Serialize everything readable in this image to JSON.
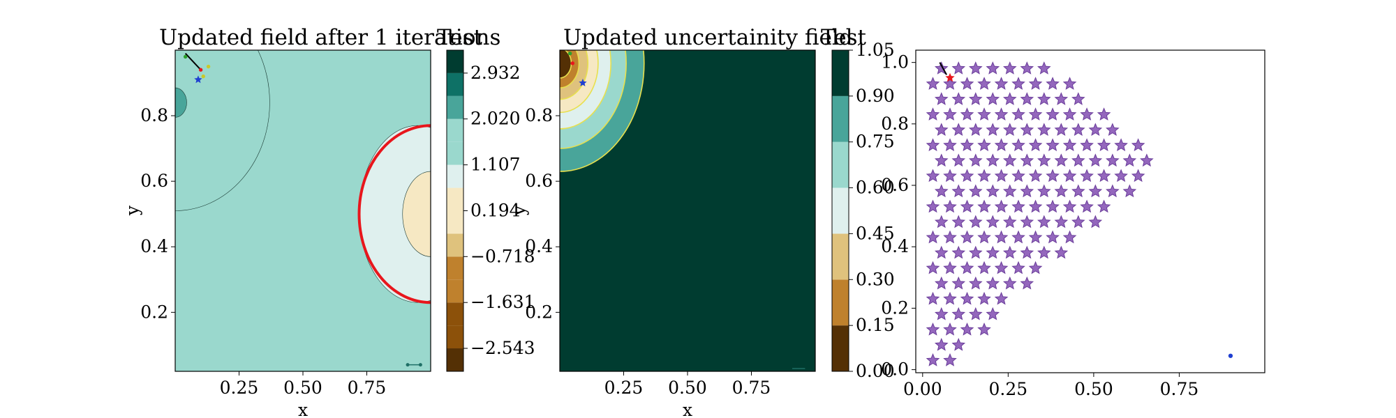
{
  "palette": {
    "brbg": [
      "#543005",
      "#8c510a",
      "#bf812d",
      "#dfc27d",
      "#f6e8c3",
      "#dff0ee",
      "#9ad8cd",
      "#49a59a",
      "#0e7166",
      "#003c30"
    ],
    "stars": "#9467bd",
    "star_edge": "#6a3d9a",
    "boundary_red": "#e8161c",
    "unc_contour": "#e8e04e"
  },
  "chart_data": [
    {
      "type": "contour",
      "title": "Updated field after 1 iterations",
      "xlabel": "x",
      "ylabel": "y",
      "xlim": [
        0.0,
        1.0
      ],
      "ylim": [
        0.02,
        1.0
      ],
      "xticks": [
        "0.25",
        "0.50",
        "0.75"
      ],
      "yticks": [
        "0.2",
        "0.4",
        "0.6",
        "0.8"
      ],
      "ytick_values": [
        0.2,
        0.4,
        0.6,
        0.8
      ],
      "xtick_values": [
        0.25,
        0.5,
        0.75
      ],
      "colorbar": {
        "label": "Test",
        "ticks": [
          "2.932",
          "2.020",
          "1.107",
          "0.194",
          "−0.718",
          "−1.631",
          "−2.543"
        ],
        "tick_values": [
          2.932,
          2.02,
          1.107,
          0.194,
          -0.718,
          -1.631,
          -2.543
        ],
        "levels": [
          -3.0,
          -2.543,
          -2.087,
          -1.631,
          -1.175,
          -0.718,
          -0.262,
          0.194,
          0.65,
          1.107,
          1.563,
          2.02,
          2.476,
          2.932,
          3.388
        ]
      },
      "regions": [
        {
          "shape": "ellipse",
          "center": [
            0.0,
            0.84
          ],
          "radii": [
            0.37,
            0.33
          ],
          "level_color": "#9ad8cd"
        },
        {
          "shape": "ellipse",
          "center": [
            0.0,
            0.84
          ],
          "radii": [
            0.045,
            0.045
          ],
          "level_color": "#49a59a"
        },
        {
          "shape": "ellipse",
          "center": [
            0.95,
            0.5
          ],
          "radii": [
            0.23,
            0.27
          ],
          "level_color": "#dff0ee"
        },
        {
          "shape": "ellipse",
          "center": [
            1.0,
            0.5
          ],
          "radii": [
            0.11,
            0.13
          ],
          "level_color": "#f6e8c3"
        }
      ],
      "boundary": {
        "center": [
          1.0,
          0.5
        ],
        "radii": [
          0.28,
          0.27
        ]
      },
      "markers": [
        {
          "x": 0.1,
          "y": 0.94,
          "kind": "dot",
          "color": "#e8161c"
        },
        {
          "x": 0.09,
          "y": 0.91,
          "kind": "star",
          "color": "#1f3fd1"
        },
        {
          "x": 0.04,
          "y": 0.98,
          "kind": "dot",
          "color": "#2ca02c"
        },
        {
          "x": 0.11,
          "y": 0.92,
          "kind": "dot",
          "color": "#c9c92a"
        },
        {
          "x": 0.13,
          "y": 0.95,
          "kind": "dot",
          "color": "#c9c92a"
        }
      ],
      "segment": {
        "x": [
          0.91,
          0.96
        ],
        "y": [
          0.04,
          0.04
        ]
      }
    },
    {
      "type": "contour",
      "title": "Updated uncertainity field",
      "xlabel": "x",
      "ylabel": "y",
      "xlim": [
        0.0,
        1.0
      ],
      "ylim": [
        0.02,
        1.0
      ],
      "xticks": [
        "0.25",
        "0.50",
        "0.75"
      ],
      "yticks": [
        "0.2",
        "0.4",
        "0.6",
        "0.8"
      ],
      "ytick_values": [
        0.2,
        0.4,
        0.6,
        0.8
      ],
      "xtick_values": [
        0.25,
        0.5,
        0.75
      ],
      "colorbar": {
        "label": "Test",
        "ticks": [
          "1.05",
          "0.90",
          "0.75",
          "0.60",
          "0.45",
          "0.30",
          "0.15",
          "0.00"
        ],
        "tick_values": [
          1.05,
          0.9,
          0.75,
          0.6,
          0.45,
          0.3,
          0.15,
          0.0
        ]
      },
      "markers": [
        {
          "x": 0.09,
          "y": 0.9,
          "kind": "star",
          "color": "#1f3fd1"
        },
        {
          "x": 0.05,
          "y": 0.96,
          "kind": "dot",
          "color": "#e8161c"
        },
        {
          "x": 0.04,
          "y": 0.99,
          "kind": "dot",
          "color": "#2ca02c"
        }
      ],
      "segment": {
        "x": [
          0.91,
          0.96
        ],
        "y": [
          0.02,
          0.02
        ]
      }
    },
    {
      "type": "scatter",
      "xlim": [
        -0.02,
        1.0
      ],
      "ylim": [
        -0.01,
        1.04
      ],
      "xticks": [
        "0.00",
        "0.25",
        "0.50",
        "0.75"
      ],
      "xtick_values": [
        0.0,
        0.25,
        0.5,
        0.75
      ],
      "yticks": [
        "0.0",
        "0.2",
        "0.4",
        "0.6",
        "0.8",
        "1.0"
      ],
      "ytick_values": [
        0.0,
        0.2,
        0.4,
        0.6,
        0.8,
        1.0
      ],
      "grid_spacing": 0.05,
      "grid_start": 0.03,
      "grid_rows": 20,
      "extra_markers": [
        {
          "x": 0.08,
          "y": 0.95,
          "kind": "star",
          "color": "#e8161c"
        },
        {
          "x": 0.9,
          "y": 0.045,
          "kind": "dot",
          "color": "#1f3fd1"
        }
      ],
      "segment": {
        "x": [
          0.05,
          0.07
        ],
        "y": [
          1.0,
          0.96
        ]
      }
    }
  ]
}
